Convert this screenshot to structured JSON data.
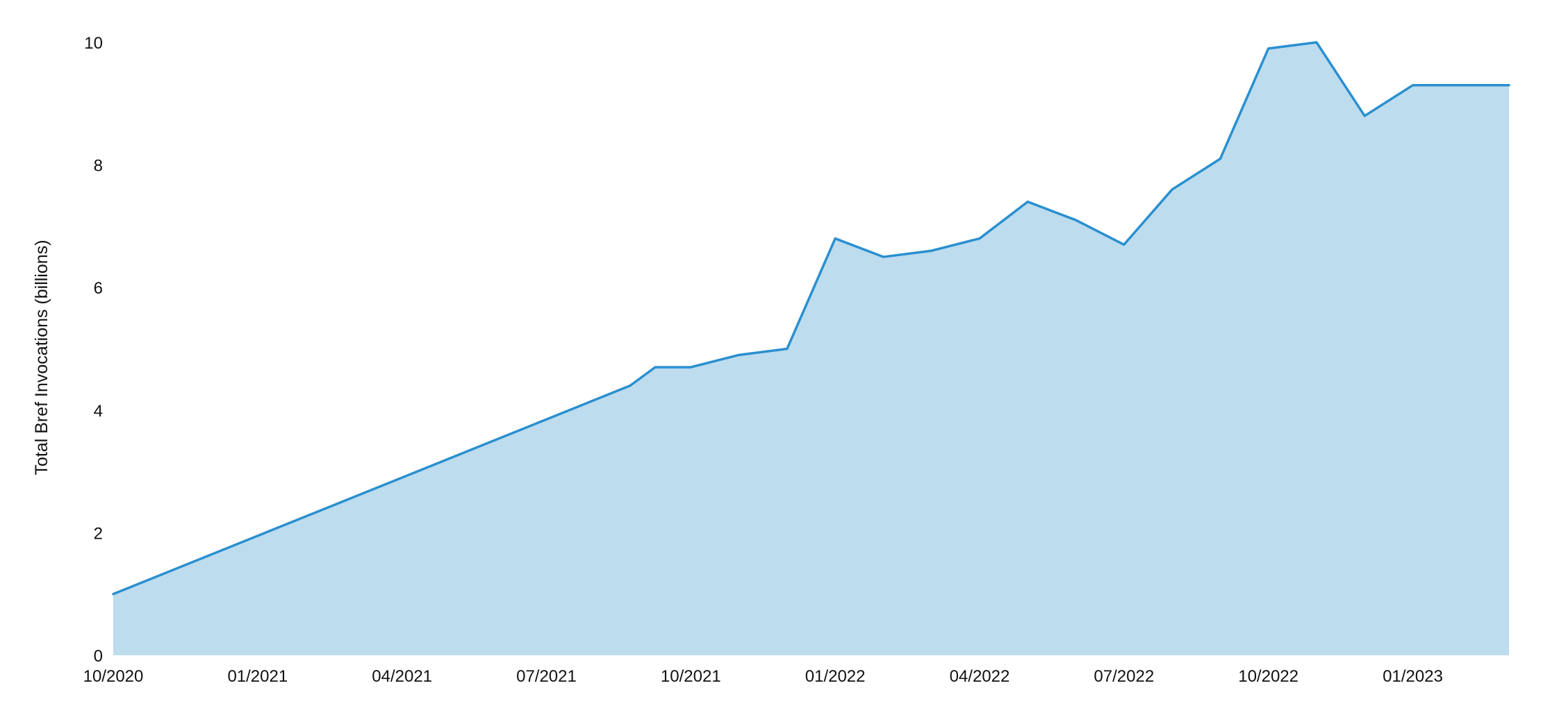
{
  "chart_data": {
    "type": "area",
    "title": "",
    "xlabel": "",
    "ylabel": "Total Bref Invocations (billions)",
    "ylim": [
      0,
      10
    ],
    "yticks": [
      0,
      2,
      4,
      6,
      8,
      10
    ],
    "xlim": [
      "2020-10",
      "2023-03"
    ],
    "xticks": [
      {
        "date": "2020-10",
        "label": "10/2020"
      },
      {
        "date": "2021-01",
        "label": "01/2021"
      },
      {
        "date": "2021-04",
        "label": "04/2021"
      },
      {
        "date": "2021-07",
        "label": "07/2021"
      },
      {
        "date": "2021-10",
        "label": "10/2021"
      },
      {
        "date": "2022-01",
        "label": "01/2022"
      },
      {
        "date": "2022-04",
        "label": "04/2022"
      },
      {
        "date": "2022-07",
        "label": "07/2022"
      },
      {
        "date": "2022-10",
        "label": "10/2022"
      },
      {
        "date": "2023-01",
        "label": "01/2023"
      }
    ],
    "grid": false,
    "legend": "none",
    "series": [
      {
        "color": "#2a8fcf",
        "fill": "#bddcee",
        "points": [
          {
            "x": "2020-10",
            "y": 1.0
          },
          {
            "x": "2021-09",
            "y": 4.4
          },
          {
            "x": "2021-09",
            "y": 4.7
          },
          {
            "x": "2021-10",
            "y": 4.7
          },
          {
            "x": "2021-11",
            "y": 4.9
          },
          {
            "x": "2021-12",
            "y": 5.0
          },
          {
            "x": "2022-01",
            "y": 6.8
          },
          {
            "x": "2022-02",
            "y": 6.5
          },
          {
            "x": "2022-03",
            "y": 6.6
          },
          {
            "x": "2022-04",
            "y": 6.8
          },
          {
            "x": "2022-05",
            "y": 7.4
          },
          {
            "x": "2022-06",
            "y": 7.1
          },
          {
            "x": "2022-07",
            "y": 6.7
          },
          {
            "x": "2022-08",
            "y": 7.6
          },
          {
            "x": "2022-09",
            "y": 8.1
          },
          {
            "x": "2022-10",
            "y": 9.9
          },
          {
            "x": "2022-11",
            "y": 10.0
          },
          {
            "x": "2022-12",
            "y": 8.8
          },
          {
            "x": "2023-01",
            "y": 9.3
          },
          {
            "x": "2023-03",
            "y": 9.3
          }
        ]
      }
    ]
  }
}
